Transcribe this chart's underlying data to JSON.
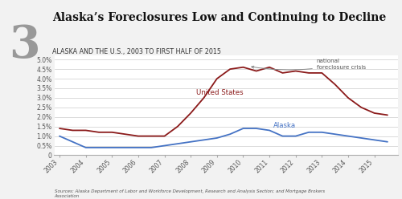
{
  "title_big": "Alaska’s Foreclosures Low and Continuing to Decline",
  "subtitle": "Alaska and the U.S., 2003 to first half of 2015",
  "number_label": "3",
  "source_text": "Sources: Alaska Department of Labor and Workforce Development, Research and Analysis Section; and Mortgage Brokers\nAssociation",
  "us_label": "United States",
  "ak_label": "Alaska",
  "annotation": "national\nforeclosure crisis",
  "us_color": "#8B1A1A",
  "ak_color": "#4472C4",
  "background_color": "#F2F2F2",
  "plot_bg": "#FFFFFF",
  "yticks": [
    0,
    0.005,
    0.01,
    0.015,
    0.02,
    0.025,
    0.03,
    0.035,
    0.04,
    0.045,
    0.05
  ],
  "ytick_labels": [
    "0",
    "0.5%",
    "1.0%",
    "1.5%",
    "2.0%",
    "2.5%",
    "3.0%",
    "3.5%",
    "4.0%",
    "4.5%",
    "5.0%"
  ],
  "x_years": [
    2003,
    2003.5,
    2004,
    2004.5,
    2005,
    2005.5,
    2006,
    2006.5,
    2007,
    2007.5,
    2008,
    2008.5,
    2009,
    2009.5,
    2010,
    2010.5,
    2011,
    2011.5,
    2012,
    2012.5,
    2013,
    2013.5,
    2014,
    2014.5,
    2015,
    2015.5
  ],
  "us_values": [
    0.014,
    0.013,
    0.013,
    0.012,
    0.012,
    0.011,
    0.01,
    0.01,
    0.01,
    0.015,
    0.022,
    0.03,
    0.04,
    0.045,
    0.046,
    0.044,
    0.046,
    0.043,
    0.044,
    0.043,
    0.043,
    0.037,
    0.03,
    0.025,
    0.022,
    0.021
  ],
  "ak_values": [
    0.01,
    0.007,
    0.004,
    0.004,
    0.004,
    0.004,
    0.004,
    0.004,
    0.005,
    0.006,
    0.007,
    0.008,
    0.009,
    0.011,
    0.014,
    0.014,
    0.013,
    0.01,
    0.01,
    0.012,
    0.012,
    0.011,
    0.01,
    0.009,
    0.008,
    0.007
  ],
  "xtick_years": [
    2003,
    2004,
    2005,
    2006,
    2007,
    2008,
    2009,
    2010,
    2011,
    2012,
    2013,
    2014,
    2015
  ],
  "ylim": [
    0,
    0.052
  ],
  "xlim": [
    2002.8,
    2015.9
  ]
}
